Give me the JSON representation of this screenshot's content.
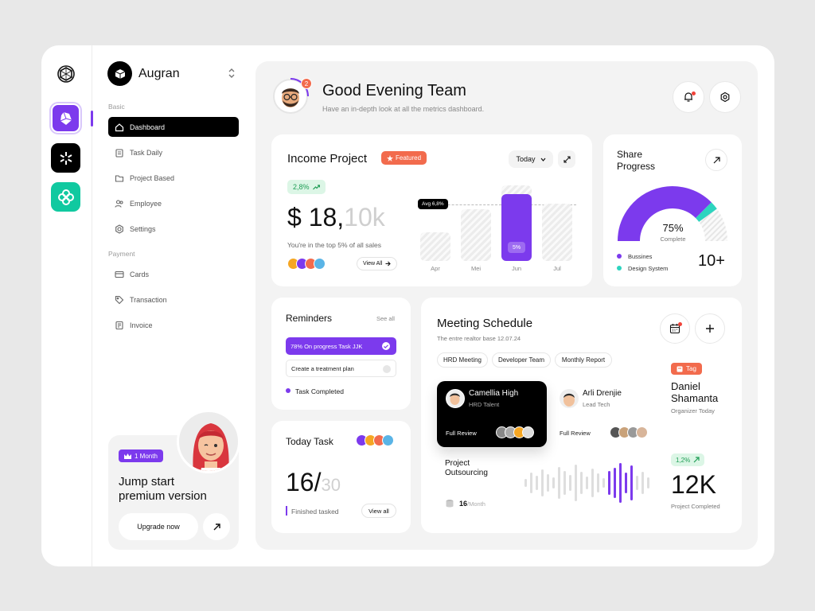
{
  "nav": {
    "brand": "Augran",
    "section_basic": "Basic",
    "section_payment": "Payment",
    "items": [
      {
        "label": "Dashboard"
      },
      {
        "label": "Task Daily"
      },
      {
        "label": "Project Based"
      },
      {
        "label": "Employee"
      },
      {
        "label": "Settings"
      },
      {
        "label": "Cards"
      },
      {
        "label": "Transaction"
      },
      {
        "label": "Invoice"
      }
    ]
  },
  "promo": {
    "badge": "1 Month",
    "title_line1": "Jump start",
    "title_line2": "premium version",
    "button": "Upgrade now"
  },
  "header": {
    "title": "Good Evening Team",
    "subtitle": "Have an in-depth look at all the metrics dashboard.",
    "avatar_badge": "2"
  },
  "income": {
    "title": "Income Project",
    "featured": "Featured",
    "period": "Today",
    "change": "2,8%",
    "amount_main": "$ 18,",
    "amount_dim": "10k",
    "caption": "You're in the top 5% of all sales",
    "view_all": "View All",
    "avg_label": "Avg 6,8%",
    "chart_data": {
      "type": "bar",
      "categories": [
        "Apr",
        "Mei",
        "Jun",
        "Jul"
      ],
      "highlight": "Jun",
      "highlight_label": "5%"
    }
  },
  "share": {
    "title_line1": "Share",
    "title_line2": "Progress",
    "percent": "75%",
    "complete": "Complete",
    "legend": [
      "Bussines",
      "Design System"
    ],
    "count": "10+",
    "progress": 0.75,
    "secondary": 0.05
  },
  "reminders": {
    "title": "Reminders",
    "see_all": "See all",
    "item1": "78% On progress Task JJK",
    "item2": "Create a treatment plan",
    "item3": "Task Completed"
  },
  "today": {
    "title": "Today Task",
    "count": "16/",
    "total": "30",
    "caption": "Finished tasked",
    "view_all": "View all"
  },
  "meeting": {
    "title": "Meeting Schedule",
    "subtitle": "The entre realtor base 12.07.24",
    "tags": [
      "HRD Meeting",
      "Developer Team",
      "Monthly Report"
    ],
    "p1": {
      "name": "Camellia High",
      "role": "HRD Talent",
      "action": "Full Review"
    },
    "p2": {
      "name": "Arli Drenjie",
      "role": "Lead Tech",
      "action": "Full Review"
    },
    "project_line1": "Project",
    "project_line2": "Outsourcing",
    "month_count": "16",
    "month_unit": "/Month",
    "tag": "Tag",
    "organizer_line1": "Daniel",
    "organizer_line2": "Shamanta",
    "organizer_role": "Organizer Today",
    "change": "1,2%",
    "big": "12K",
    "big_caption": "Project Completed"
  }
}
